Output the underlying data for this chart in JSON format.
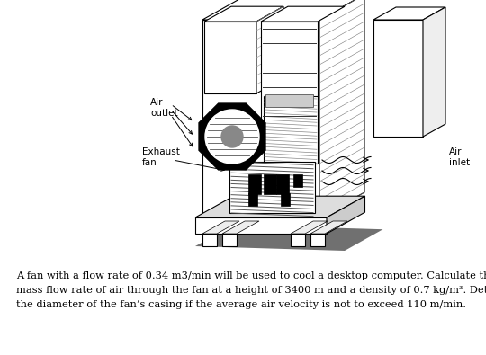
{
  "background_color": "#ffffff",
  "text_line1": "A fan with a flow rate of 0.34 m3/min will be used to cool a desktop computer. Calculate the",
  "text_line2": "mass flow rate of air through the fan at a height of 3400 m and a density of 0.7 kg/m³. Determine",
  "text_line3": "the diameter of the fan’s casing if the average air velocity is not to exceed 110 m/min.",
  "text_fontsize": 8.2,
  "label_air_outlet": "Air\noutlet",
  "label_air_inlet": "Air\ninlet",
  "label_exhaust_fan": "Exhaust\nfan",
  "figure_width": 5.4,
  "figure_height": 3.95,
  "dpi": 100
}
